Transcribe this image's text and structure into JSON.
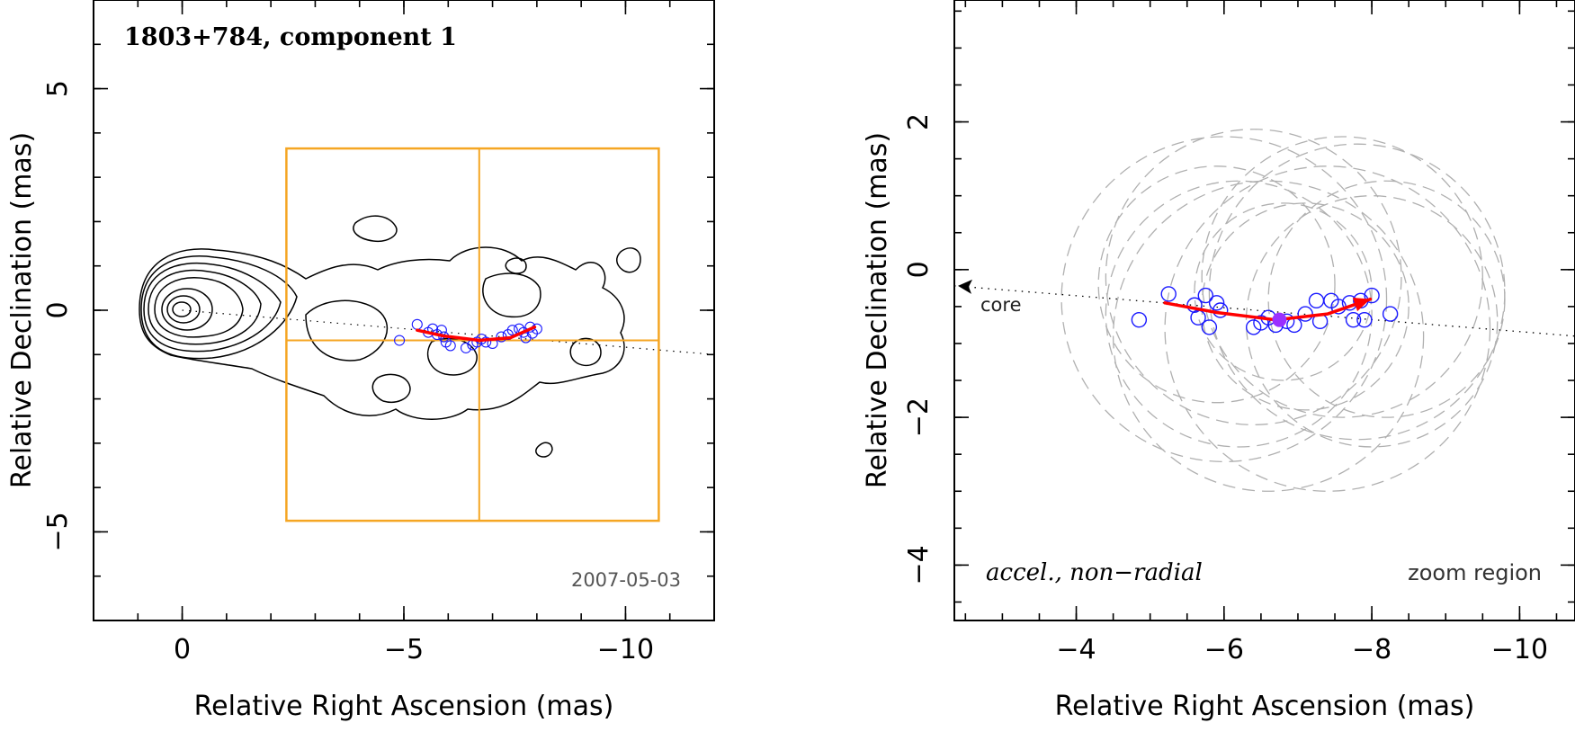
{
  "chart_data": [
    {
      "type": "scatter",
      "panel": "left",
      "title": "1803+784, component 1",
      "date": "2007-05-03",
      "xlabel": "Relative Right Ascension (mas)",
      "ylabel": "Relative Declination (mas)",
      "xlim": [
        2,
        -12
      ],
      "ylim": [
        -7,
        7
      ],
      "xticks": [
        0,
        -5,
        -10
      ],
      "xtick_labels": [
        "0",
        "−5",
        "−10"
      ],
      "yticks": [
        5,
        0,
        -5
      ],
      "ytick_labels": [
        "5",
        "0",
        "−5"
      ],
      "zoom_box": {
        "x": [
          -2.35,
          -10.75
        ],
        "y": [
          3.65,
          -4.75
        ],
        "center": [
          -6.7,
          -0.68
        ]
      },
      "jet_axis": [
        [
          0,
          0
        ],
        [
          -12,
          -1.0
        ]
      ],
      "positions": [
        [
          -5.3,
          -0.32
        ],
        [
          -5.55,
          -0.5
        ],
        [
          -5.65,
          -0.42
        ],
        [
          -5.75,
          -0.55
        ],
        [
          -5.85,
          -0.45
        ],
        [
          -5.9,
          -0.6
        ],
        [
          -5.95,
          -0.72
        ],
        [
          -6.05,
          -0.8
        ],
        [
          -6.4,
          -0.85
        ],
        [
          -6.55,
          -0.78
        ],
        [
          -6.65,
          -0.72
        ],
        [
          -6.75,
          -0.65
        ],
        [
          -6.85,
          -0.72
        ],
        [
          -7.0,
          -0.75
        ],
        [
          -7.2,
          -0.6
        ],
        [
          -7.35,
          -0.55
        ],
        [
          -7.45,
          -0.45
        ],
        [
          -7.6,
          -0.42
        ],
        [
          -7.7,
          -0.5
        ],
        [
          -7.75,
          -0.62
        ],
        [
          -7.85,
          -0.38
        ],
        [
          -7.9,
          -0.52
        ],
        [
          -8.0,
          -0.42
        ],
        [
          -4.9,
          -0.68
        ]
      ],
      "trajectory": [
        [
          -5.3,
          -0.45
        ],
        [
          -5.9,
          -0.58
        ],
        [
          -6.7,
          -0.68
        ],
        [
          -7.4,
          -0.62
        ],
        [
          -7.95,
          -0.38
        ]
      ],
      "color_points": "#1a1aff",
      "color_box": "#f5a623",
      "color_track": "#ff0000"
    },
    {
      "type": "scatter",
      "panel": "right",
      "xlabel": "Relative Right Ascension (mas)",
      "ylabel": "Relative Declination (mas)",
      "xlim": [
        -2.35,
        -10.75
      ],
      "ylim": [
        -4.75,
        3.65
      ],
      "xticks": [
        -4,
        -6,
        -8,
        -10
      ],
      "xtick_labels": [
        "−4",
        "−6",
        "−8",
        "−10"
      ],
      "yticks": [
        2,
        0,
        -2,
        -4
      ],
      "ytick_labels": [
        "2",
        "0",
        "−2",
        "−4"
      ],
      "annotation_left": "accel., non−radial",
      "annotation_right": "zoom region",
      "core_label": "core",
      "mean_position": [
        -6.75,
        -0.68
      ],
      "positions": [
        [
          -4.85,
          -0.68
        ],
        [
          -5.25,
          -0.33
        ],
        [
          -5.6,
          -0.48
        ],
        [
          -5.65,
          -0.65
        ],
        [
          -5.75,
          -0.35
        ],
        [
          -5.8,
          -0.78
        ],
        [
          -5.9,
          -0.45
        ],
        [
          -5.95,
          -0.55
        ],
        [
          -6.4,
          -0.78
        ],
        [
          -6.5,
          -0.72
        ],
        [
          -6.6,
          -0.65
        ],
        [
          -6.7,
          -0.75
        ],
        [
          -6.85,
          -0.7
        ],
        [
          -6.95,
          -0.75
        ],
        [
          -7.1,
          -0.6
        ],
        [
          -7.25,
          -0.42
        ],
        [
          -7.3,
          -0.7
        ],
        [
          -7.45,
          -0.42
        ],
        [
          -7.55,
          -0.5
        ],
        [
          -7.7,
          -0.45
        ],
        [
          -7.75,
          -0.68
        ],
        [
          -7.85,
          -0.42
        ],
        [
          -7.9,
          -0.68
        ],
        [
          -8.0,
          -0.35
        ],
        [
          -8.25,
          -0.6
        ]
      ],
      "trajectory": [
        [
          -5.2,
          -0.45
        ],
        [
          -5.9,
          -0.58
        ],
        [
          -6.7,
          -0.68
        ],
        [
          -7.4,
          -0.6
        ],
        [
          -7.98,
          -0.4
        ]
      ],
      "jet_axis": [
        [
          -2.35,
          -0.22
        ],
        [
          -10.75,
          -0.9
        ]
      ],
      "uncertainty_circles": [
        {
          "x": -6.0,
          "y": -0.4,
          "r": 2.2
        },
        {
          "x": -6.4,
          "y": -0.1,
          "r": 2.0
        },
        {
          "x": -6.2,
          "y": -0.6,
          "r": 1.8
        },
        {
          "x": -5.9,
          "y": -0.2,
          "r": 1.6
        },
        {
          "x": -6.6,
          "y": -0.9,
          "r": 2.1
        },
        {
          "x": -7.8,
          "y": -0.3,
          "r": 2.0
        },
        {
          "x": -8.0,
          "y": -0.7,
          "r": 1.7
        },
        {
          "x": -7.6,
          "y": -0.1,
          "r": 1.9
        },
        {
          "x": -8.2,
          "y": -0.4,
          "r": 1.6
        },
        {
          "x": -7.4,
          "y": -0.8,
          "r": 2.2
        },
        {
          "x": -7.1,
          "y": -0.5,
          "r": 1.4
        },
        {
          "x": -6.8,
          "y": -0.3,
          "r": 1.2
        }
      ],
      "color_points": "#1a1aff",
      "color_mean": "#9b30ff",
      "color_track": "#ff0000",
      "color_circles": "#b0b0b0"
    }
  ]
}
